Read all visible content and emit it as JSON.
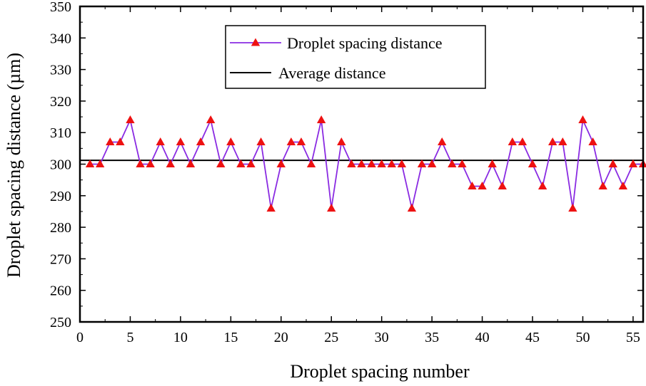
{
  "chart_data": {
    "type": "line",
    "title": "",
    "xlabel": "Droplet spacing number",
    "ylabel": "Droplet spacing distance (µm)",
    "xlim": [
      0,
      56
    ],
    "ylim": [
      250,
      350
    ],
    "xticks": [
      0,
      5,
      10,
      15,
      20,
      25,
      30,
      35,
      40,
      45,
      50,
      55
    ],
    "yticks": [
      250,
      260,
      270,
      280,
      290,
      300,
      310,
      320,
      330,
      340,
      350
    ],
    "grid": false,
    "legend_position": "top-center",
    "series": [
      {
        "name": "Droplet spacing distance",
        "color": "#8a2be2",
        "marker_color": "#ee1111",
        "marker": "triangle",
        "x": [
          1,
          2,
          3,
          4,
          5,
          6,
          7,
          8,
          9,
          10,
          11,
          12,
          13,
          14,
          15,
          16,
          17,
          18,
          19,
          20,
          21,
          22,
          23,
          24,
          25,
          26,
          27,
          28,
          29,
          30,
          31,
          32,
          33,
          34,
          35,
          36,
          37,
          38,
          39,
          40,
          41,
          42,
          43,
          44,
          45,
          46,
          47,
          48,
          49,
          50,
          51,
          52,
          53,
          54,
          55,
          56
        ],
        "values": [
          300,
          300,
          307,
          307,
          314,
          300,
          300,
          307,
          300,
          307,
          300,
          307,
          314,
          300,
          307,
          300,
          300,
          307,
          286,
          300,
          307,
          307,
          300,
          314,
          286,
          307,
          300,
          300,
          300,
          300,
          300,
          300,
          286,
          300,
          300,
          307,
          300,
          300,
          293,
          293,
          300,
          293,
          307,
          307,
          300,
          293,
          307,
          307,
          286,
          314,
          307,
          293,
          300,
          293,
          300,
          300
        ]
      },
      {
        "name": "Average distance",
        "color": "#000000",
        "value": 301.2
      }
    ]
  }
}
